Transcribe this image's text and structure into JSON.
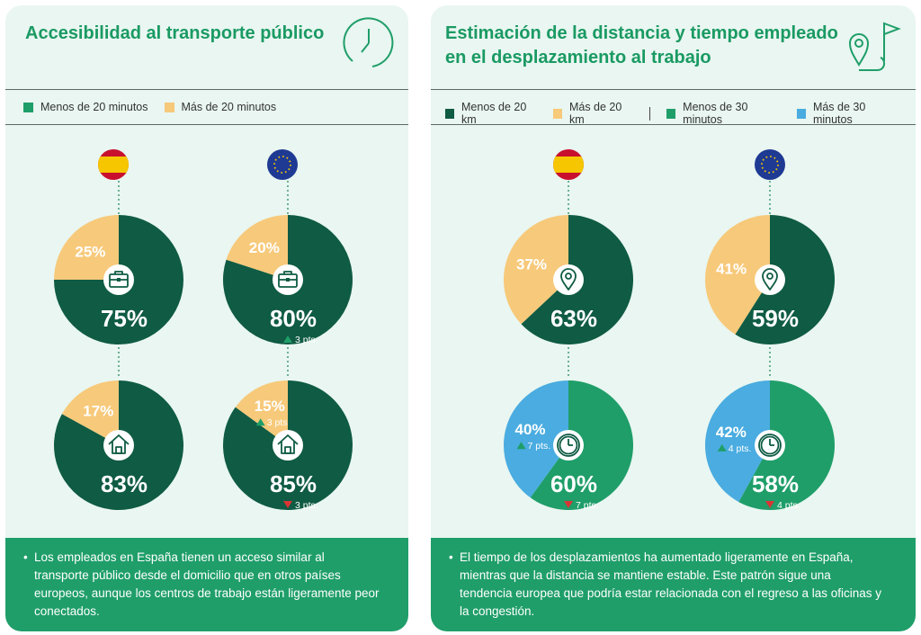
{
  "left": {
    "title": "Accesibilidad al transporte público",
    "legend": [
      {
        "label": "Menos de 20 minutos",
        "color": "#1f9e69"
      },
      {
        "label": "Más de 20 minutos",
        "color": "#f7c97a"
      }
    ],
    "note": "Los empleados en España tienen un acceso similar al transporte público desde el domicilio que en otros países europeos, aunque los centros de trabajo están ligeramente peor conectados."
  },
  "right": {
    "title_line1": "Estimación de la distancia y tiempo empleado",
    "title_line2": "en el desplazamiento al trabajo",
    "legend": [
      {
        "label": "Menos de 20 km",
        "color": "#0f5b43"
      },
      {
        "label": "Más de 20 km",
        "color": "#f7c97a"
      },
      {
        "label": "Menos de 30 minutos",
        "color": "#1f9e69"
      },
      {
        "label": "Más de 30 minutos",
        "color": "#4aace0"
      }
    ],
    "note": "El tiempo de los desplazamientos ha aumentado ligeramente en España, mientras que la distancia se mantiene estable. Este patrón sigue una tendencia europea que podría estar relacionada con el regreso a las oficinas y la congestión."
  },
  "chart_data": [
    {
      "type": "pie",
      "title": "Accesibilidad al transporte público – trabajo – España",
      "icon": "briefcase-icon",
      "slices": [
        {
          "name": "Menos de 20 minutos",
          "value": 75,
          "label": "75%",
          "color": "#0f5b43"
        },
        {
          "name": "Más de 20 minutos",
          "value": 25,
          "label": "25%",
          "color": "#f7c97a"
        }
      ]
    },
    {
      "type": "pie",
      "title": "Accesibilidad al transporte público – trabajo – Europa",
      "icon": "briefcase-icon",
      "slices": [
        {
          "name": "Menos de 20 minutos",
          "value": 80,
          "label": "80%",
          "color": "#0f5b43",
          "change": "3 pts.",
          "dir": "up"
        },
        {
          "name": "Más de 20 minutos",
          "value": 20,
          "label": "20%",
          "color": "#f7c97a"
        }
      ]
    },
    {
      "type": "pie",
      "title": "Accesibilidad al transporte público – domicilio – España",
      "icon": "home-icon",
      "slices": [
        {
          "name": "Menos de 20 minutos",
          "value": 83,
          "label": "83%",
          "color": "#0f5b43"
        },
        {
          "name": "Más de 20 minutos",
          "value": 17,
          "label": "17%",
          "color": "#f7c97a"
        }
      ]
    },
    {
      "type": "pie",
      "title": "Accesibilidad al transporte público – domicilio – Europa",
      "icon": "home-icon",
      "slices": [
        {
          "name": "Menos de 20 minutos",
          "value": 85,
          "label": "85%",
          "color": "#0f5b43",
          "change": "3 pts.",
          "dir": "down"
        },
        {
          "name": "Más de 20 minutos",
          "value": 15,
          "label": "15%",
          "color": "#f7c97a",
          "change": "3 pts",
          "dir": "up"
        }
      ]
    },
    {
      "type": "pie",
      "title": "Distancia – España",
      "icon": "location-pin-icon",
      "slices": [
        {
          "name": "Menos de 20 km",
          "value": 63,
          "label": "63%",
          "color": "#0f5b43"
        },
        {
          "name": "Más de 20 km",
          "value": 37,
          "label": "37%",
          "color": "#f7c97a"
        }
      ]
    },
    {
      "type": "pie",
      "title": "Distancia – Europa",
      "icon": "location-pin-icon",
      "slices": [
        {
          "name": "Menos de 20 km",
          "value": 59,
          "label": "59%",
          "color": "#0f5b43"
        },
        {
          "name": "Más de 20 km",
          "value": 41,
          "label": "41%",
          "color": "#f7c97a"
        }
      ]
    },
    {
      "type": "pie",
      "title": "Tiempo – España",
      "icon": "clock-icon",
      "slices": [
        {
          "name": "Menos de 30 minutos",
          "value": 60,
          "label": "60%",
          "color": "#1f9e69",
          "change": "7 pts.",
          "dir": "down"
        },
        {
          "name": "Más de 30 minutos",
          "value": 40,
          "label": "40%",
          "color": "#4aace0",
          "change": "7 pts.",
          "dir": "up"
        }
      ]
    },
    {
      "type": "pie",
      "title": "Tiempo – Europa",
      "icon": "clock-icon",
      "slices": [
        {
          "name": "Menos de 30 minutos",
          "value": 58,
          "label": "58%",
          "color": "#1f9e69",
          "change": "4 pts.",
          "dir": "down"
        },
        {
          "name": "Más de 30 minutos",
          "value": 42,
          "label": "42%",
          "color": "#4aace0",
          "change": "4 pts.",
          "dir": "up"
        }
      ]
    }
  ]
}
